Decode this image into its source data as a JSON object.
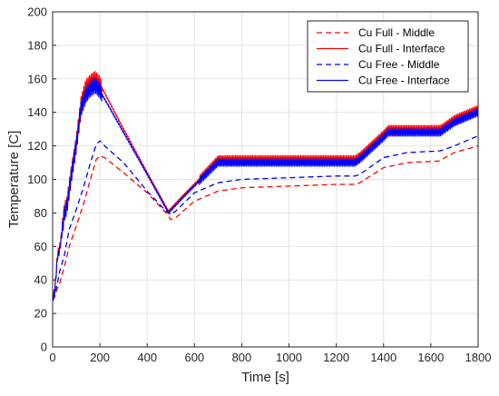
{
  "chart_data": {
    "type": "line",
    "xlabel": "Time [s]",
    "ylabel": "Temperature [C]",
    "xlim": [
      0,
      1800
    ],
    "ylim": [
      0,
      200
    ],
    "x_ticks": [
      "0",
      "200",
      "400",
      "600",
      "800",
      "1000",
      "1200",
      "1400",
      "1600",
      "1800"
    ],
    "y_ticks": [
      "0",
      "20",
      "40",
      "60",
      "80",
      "100",
      "120",
      "140",
      "160",
      "180",
      "200"
    ],
    "grid": true,
    "legend_position": "top-right",
    "series": [
      {
        "name": "Cu Full - Middle",
        "color": "#ff0000",
        "style": "dashed",
        "x": [
          0,
          10,
          20,
          30,
          50,
          70,
          100,
          130,
          160,
          185,
          200,
          220,
          300,
          400,
          480,
          500,
          520,
          600,
          700,
          800,
          1000,
          1200,
          1280,
          1300,
          1400,
          1500,
          1640,
          1660,
          1700,
          1800
        ],
        "y": [
          28,
          30,
          35,
          38,
          48,
          60,
          72,
          85,
          100,
          112,
          114,
          113,
          104,
          92,
          80,
          76,
          77,
          87,
          93,
          95,
          96,
          97,
          97,
          98,
          107,
          110,
          111,
          113,
          116,
          120
        ]
      },
      {
        "name": "Cu Full - Interface",
        "color": "#ff0000",
        "style": "solid",
        "oscillating": true,
        "x": [
          0,
          10,
          20,
          30,
          40,
          50,
          60,
          80,
          100,
          120,
          140,
          160,
          180,
          200,
          300,
          400,
          490,
          550,
          620,
          700,
          800,
          1000,
          1200,
          1280,
          1300,
          1400,
          1420,
          1500,
          1640,
          1660,
          1700,
          1800
        ],
        "y": [
          28,
          35,
          55,
          60,
          70,
          82,
          85,
          105,
          122,
          145,
          155,
          158,
          160,
          157,
          130,
          104,
          81,
          90,
          100,
          112,
          112,
          112,
          112,
          112,
          114,
          127,
          130,
          130,
          130,
          132,
          136,
          142
        ]
      },
      {
        "name": "Cu Free - Middle",
        "color": "#0000ff",
        "style": "dashed",
        "x": [
          0,
          10,
          20,
          30,
          50,
          70,
          100,
          130,
          160,
          185,
          200,
          220,
          300,
          400,
          480,
          500,
          520,
          600,
          700,
          800,
          1000,
          1200,
          1280,
          1300,
          1400,
          1500,
          1640,
          1660,
          1700,
          1800
        ],
        "y": [
          28,
          32,
          38,
          45,
          55,
          70,
          82,
          95,
          110,
          121,
          123,
          120,
          110,
          93,
          81,
          79,
          81,
          92,
          98,
          100,
          101,
          102,
          102,
          103,
          113,
          116,
          117,
          118,
          120,
          126
        ]
      },
      {
        "name": "Cu Free - Interface",
        "color": "#0000ff",
        "style": "solid",
        "oscillating": true,
        "x": [
          0,
          10,
          20,
          30,
          40,
          50,
          60,
          80,
          100,
          120,
          140,
          160,
          180,
          200,
          300,
          400,
          490,
          550,
          620,
          700,
          800,
          1000,
          1200,
          1280,
          1300,
          1400,
          1420,
          1500,
          1640,
          1660,
          1700,
          1800
        ],
        "y": [
          28,
          34,
          53,
          58,
          68,
          80,
          83,
          103,
          120,
          142,
          150,
          154,
          156,
          153,
          128,
          103,
          80,
          89,
          99,
          110,
          110,
          110,
          110,
          110,
          112,
          125,
          128,
          128,
          128,
          130,
          134,
          140
        ]
      }
    ]
  }
}
